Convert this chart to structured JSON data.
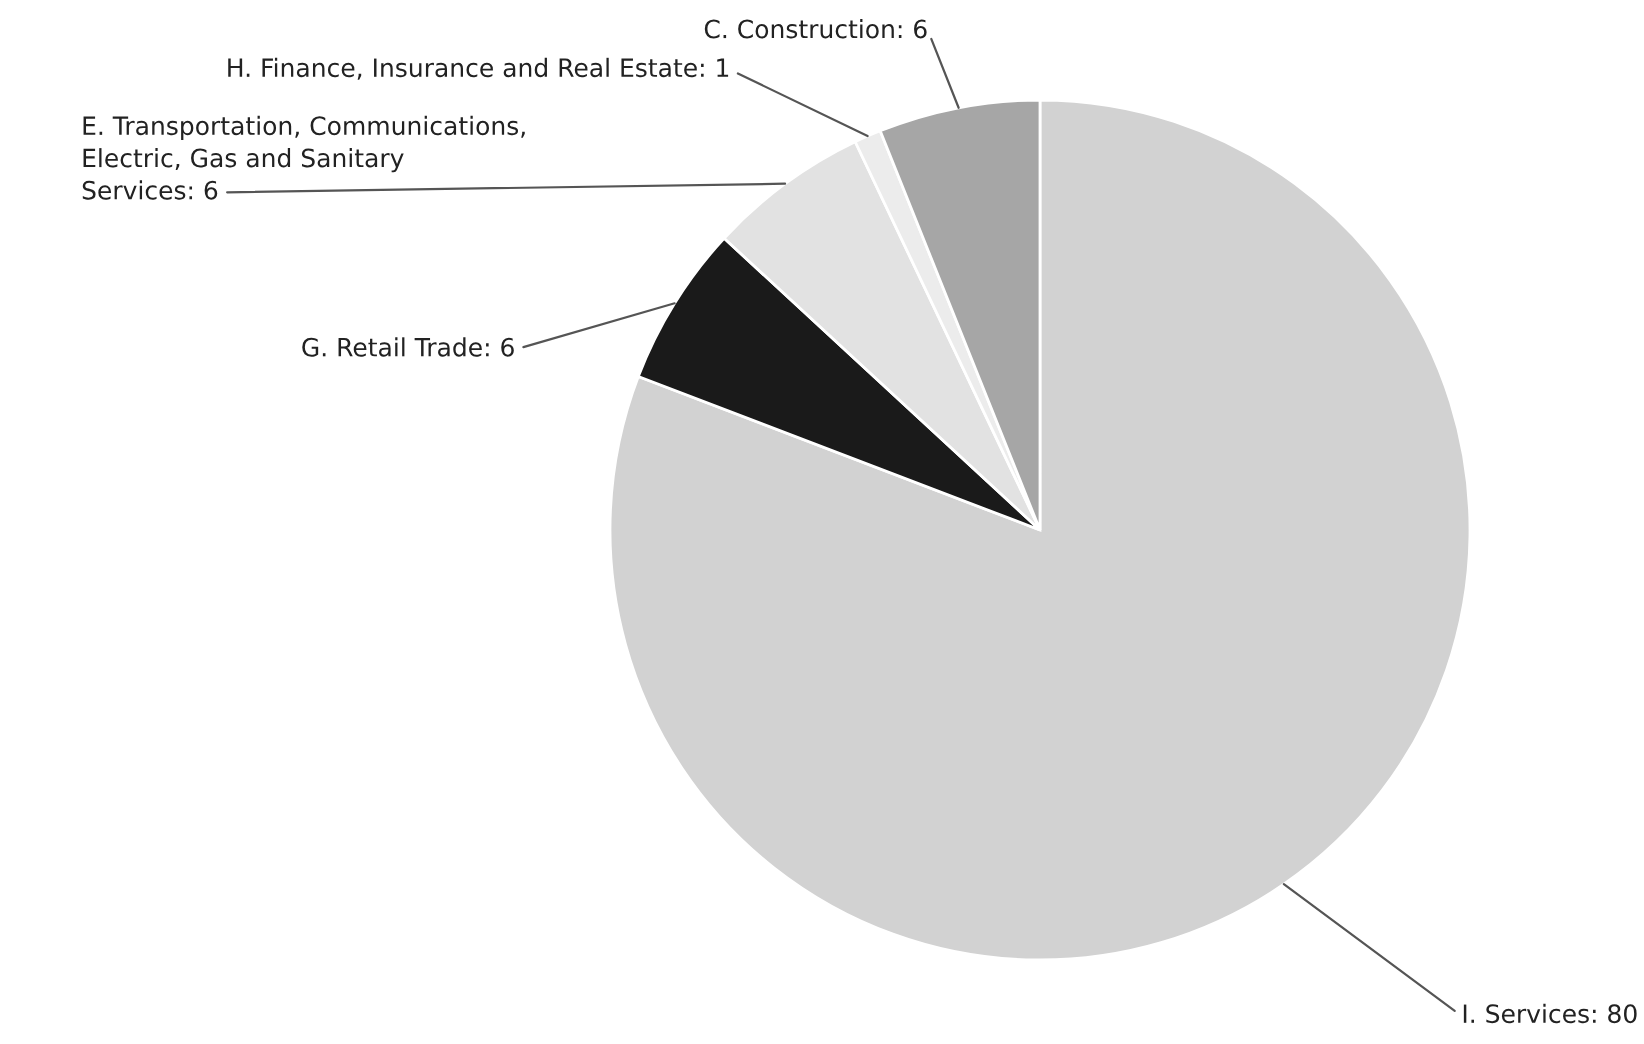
{
  "chart_data": {
    "type": "pie",
    "categories": [
      "I. Services",
      "G. Retail Trade",
      "E. Transportation, Communications, Electric, Gas and Sanitary Services",
      "H. Finance, Insurance and Real Estate",
      "C. Construction"
    ],
    "values": [
      80,
      6,
      6,
      1,
      6
    ],
    "colors": [
      "#d2d2d2",
      "#1a1a1a",
      "#e2e2e2",
      "#ececec",
      "#a6a6a6"
    ],
    "value_labels": [
      ": 80",
      ": 6",
      ": 6",
      ": 1",
      ": 6"
    ]
  }
}
